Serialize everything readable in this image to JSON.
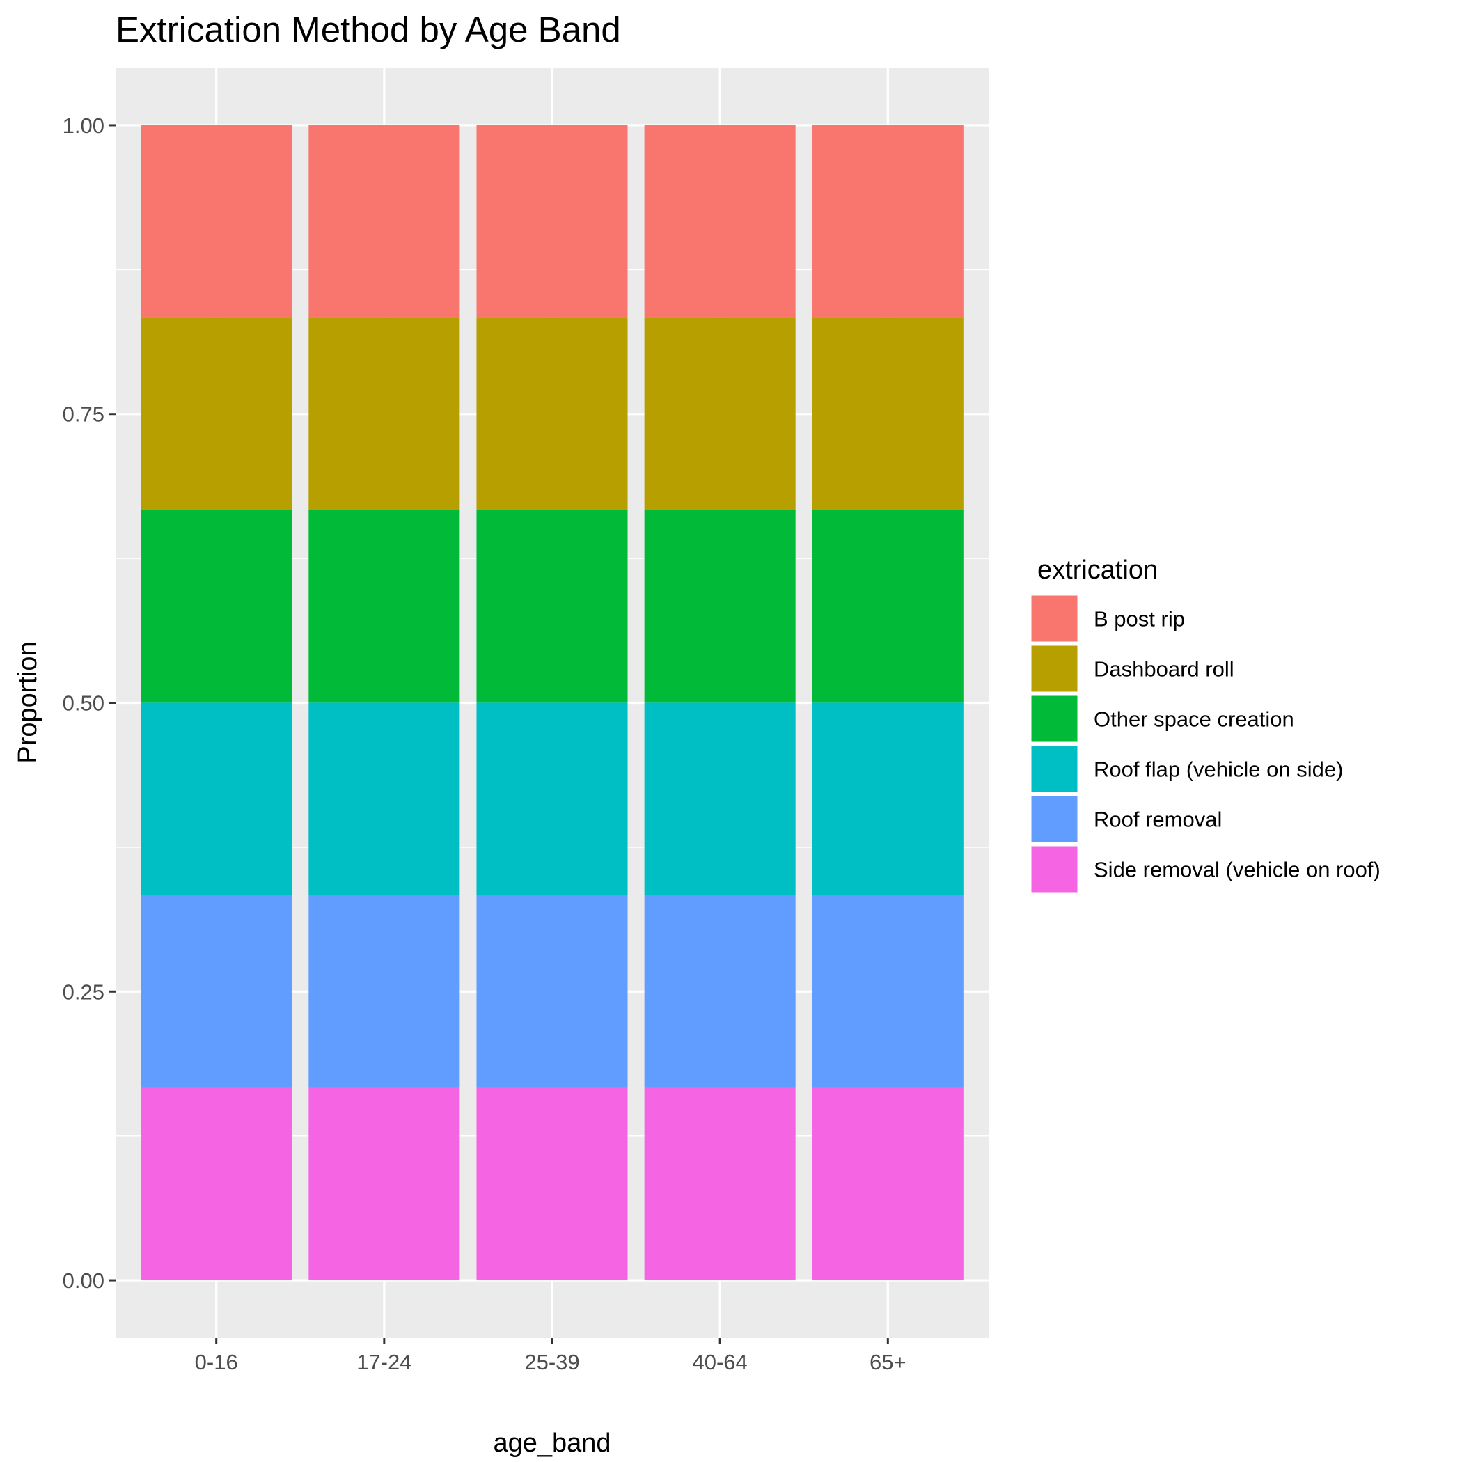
{
  "chart_data": {
    "type": "bar",
    "stacked": true,
    "title": "Extrication Method by Age Band",
    "xlabel": "age_band",
    "ylabel": "Proportion",
    "ylim": [
      -0.05,
      1.05
    ],
    "yticks": [
      "0.00",
      "0.25",
      "0.50",
      "0.75",
      "1.00"
    ],
    "categories": [
      "0-16",
      "17-24",
      "25-39",
      "40-64",
      "65+"
    ],
    "legend_title": "extrication",
    "legend_position": "right",
    "grid": true,
    "panel_background": "#ebebeb",
    "grid_color": "#ffffff",
    "series": [
      {
        "name": "B post rip",
        "color": "#f8766d",
        "values": [
          0.1667,
          0.1667,
          0.1667,
          0.1667,
          0.1667
        ]
      },
      {
        "name": "Dashboard roll",
        "color": "#b79f00",
        "values": [
          0.1667,
          0.1667,
          0.1667,
          0.1667,
          0.1667
        ]
      },
      {
        "name": "Other space creation",
        "color": "#00ba38",
        "values": [
          0.1667,
          0.1667,
          0.1667,
          0.1667,
          0.1667
        ]
      },
      {
        "name": "Roof flap (vehicle on side)",
        "color": "#00bfc4",
        "values": [
          0.1667,
          0.1667,
          0.1667,
          0.1667,
          0.1667
        ]
      },
      {
        "name": "Roof removal",
        "color": "#619cff",
        "values": [
          0.1667,
          0.1667,
          0.1667,
          0.1667,
          0.1667
        ]
      },
      {
        "name": "Side removal (vehicle on roof)",
        "color": "#f564e3",
        "values": [
          0.1667,
          0.1667,
          0.1667,
          0.1667,
          0.1667
        ]
      }
    ]
  }
}
